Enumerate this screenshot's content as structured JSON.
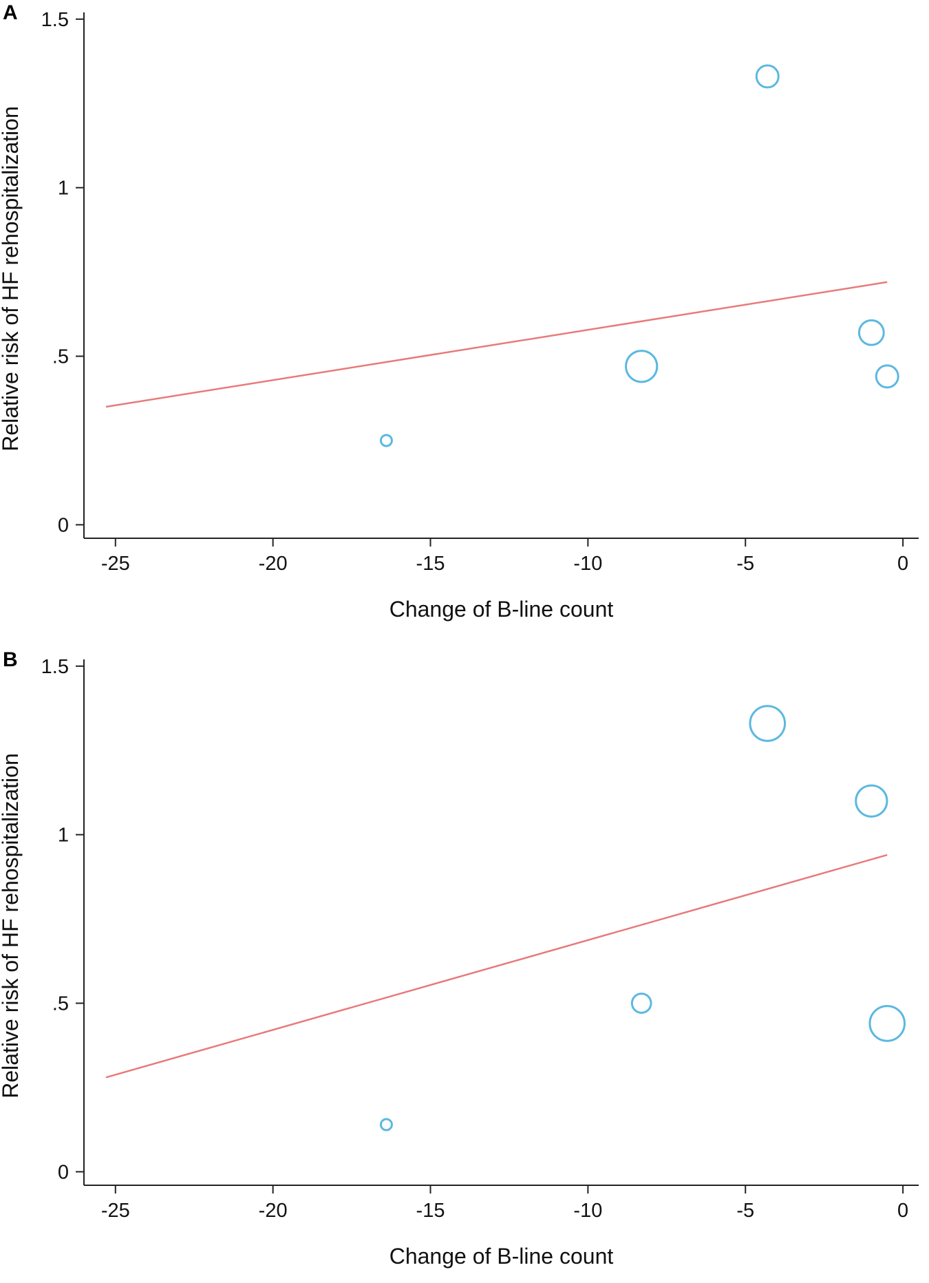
{
  "colors": {
    "bubble": "#5bb8e0",
    "fit": "#e87a7a",
    "background": "#ffffff",
    "axis": "#222222"
  },
  "chart_data": [
    {
      "panel": "A",
      "type": "scatter",
      "xlabel": "Change of B-line count",
      "ylabel": "Relative risk of HF rehospitalization",
      "xlim": [
        -26,
        0.5
      ],
      "ylim": [
        -0.04,
        1.52
      ],
      "xticks": [
        -25,
        -20,
        -15,
        -10,
        -5,
        0
      ],
      "xtick_labels": [
        "-25",
        "-20",
        "-15",
        "-10",
        "-5",
        "0"
      ],
      "yticks": [
        0,
        0.5,
        1,
        1.5
      ],
      "ytick_labels": [
        "0",
        ".5",
        "1",
        "1.5"
      ],
      "points": [
        {
          "x": -16.4,
          "y": 0.25,
          "weight": 1
        },
        {
          "x": -8.3,
          "y": 0.47,
          "weight": 8
        },
        {
          "x": -4.3,
          "y": 1.33,
          "weight": 4
        },
        {
          "x": -1.0,
          "y": 0.57,
          "weight": 5
        },
        {
          "x": -0.5,
          "y": 0.44,
          "weight": 4
        }
      ],
      "fit_line": {
        "x": [
          -25.3,
          -0.5
        ],
        "y": [
          0.35,
          0.72
        ]
      }
    },
    {
      "panel": "B",
      "type": "scatter",
      "xlabel": "Change of B-line count",
      "ylabel": "Relative risk of HF rehospitalization",
      "xlim": [
        -26,
        0.5
      ],
      "ylim": [
        -0.04,
        1.52
      ],
      "xticks": [
        -25,
        -20,
        -15,
        -10,
        -5,
        0
      ],
      "xtick_labels": [
        "-25",
        "-20",
        "-15",
        "-10",
        "-5",
        "0"
      ],
      "yticks": [
        0,
        0.5,
        1,
        1.5
      ],
      "ytick_labels": [
        "0",
        ".5",
        "1",
        "1.5"
      ],
      "points": [
        {
          "x": -16.4,
          "y": 0.14,
          "weight": 1
        },
        {
          "x": -8.3,
          "y": 0.5,
          "weight": 3
        },
        {
          "x": -4.3,
          "y": 1.33,
          "weight": 10
        },
        {
          "x": -1.0,
          "y": 1.1,
          "weight": 8
        },
        {
          "x": -0.5,
          "y": 0.44,
          "weight": 10
        }
      ],
      "fit_line": {
        "x": [
          -25.3,
          -0.5
        ],
        "y": [
          0.28,
          0.94
        ]
      }
    }
  ]
}
